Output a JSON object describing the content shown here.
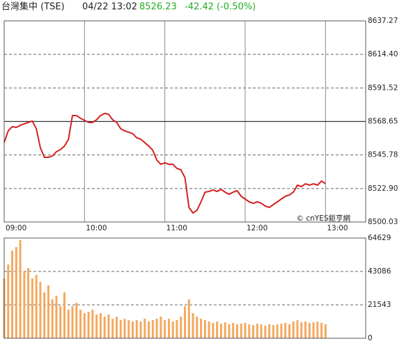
{
  "header": {
    "title": "台灣集中 (TSE)",
    "time": "04/22 13:02",
    "price": "8526.23",
    "change": "-42.42 (-0.50%)"
  },
  "chart_data": [
    {
      "type": "line",
      "color": "#d42020",
      "annotation": "© cnYES鉅亨網",
      "x": [
        0,
        3,
        6,
        9,
        12,
        15,
        18,
        21,
        24,
        27,
        30,
        33,
        36,
        39,
        42,
        45,
        48,
        51,
        54,
        57,
        60,
        63,
        66,
        69,
        72,
        75,
        78,
        81,
        84,
        87,
        90,
        93,
        96,
        99,
        102,
        105,
        108,
        111,
        114,
        117,
        120,
        123,
        126,
        129,
        132,
        135,
        138,
        141,
        144,
        147,
        150,
        153,
        156,
        159,
        162,
        165,
        168,
        171,
        174,
        177,
        180,
        183,
        186,
        189,
        192,
        195,
        198,
        201,
        204,
        207,
        210,
        213,
        216,
        219,
        222,
        225,
        228,
        231,
        234,
        237,
        240
      ],
      "values": [
        8554.2,
        8562.2,
        8565.1,
        8564.6,
        8566.0,
        8567.0,
        8568.0,
        8568.9,
        8563.7,
        8550.8,
        8544.2,
        8544.2,
        8545.1,
        8548.0,
        8549.4,
        8551.8,
        8556.5,
        8572.7,
        8572.7,
        8570.8,
        8569.4,
        8568.0,
        8568.0,
        8569.8,
        8572.7,
        8574.1,
        8573.6,
        8569.8,
        8568.0,
        8563.7,
        8562.2,
        8561.3,
        8560.3,
        8557.5,
        8556.5,
        8554.2,
        8551.8,
        8549.0,
        8542.3,
        8539.4,
        8540.4,
        8539.4,
        8539.4,
        8536.6,
        8535.6,
        8530.4,
        8510.0,
        8506.2,
        8508.1,
        8513.8,
        8520.4,
        8520.9,
        8521.9,
        8520.9,
        8522.3,
        8520.4,
        8519.0,
        8520.4,
        8521.4,
        8517.6,
        8515.7,
        8513.8,
        8512.8,
        8513.8,
        8512.8,
        8510.9,
        8510.0,
        8511.9,
        8513.8,
        8515.7,
        8517.6,
        8518.5,
        8520.4,
        8525.2,
        8524.2,
        8526.1,
        8525.2,
        8526.1,
        8525.2,
        8528.0,
        8526.1
      ],
      "xlim": [
        0,
        270
      ],
      "xticks": [
        {
          "value": 0,
          "label": "09:00"
        },
        {
          "value": 60,
          "label": "10:00"
        },
        {
          "value": 120,
          "label": "11:00"
        },
        {
          "value": 180,
          "label": "12:00"
        },
        {
          "value": 240,
          "label": "13:00"
        }
      ],
      "ylim": [
        8500.03,
        8637.27
      ],
      "yticks": [
        8500.03,
        {
          "value": 8522.9,
          "label": "8522.90"
        },
        8545.78,
        8568.65,
        8591.52,
        {
          "value": 8614.4,
          "label": "8614.40"
        },
        8637.27
      ],
      "reference_value": 8568.65
    },
    {
      "type": "bar",
      "color": "#f4a860",
      "x": [
        0,
        3,
        6,
        9,
        12,
        15,
        18,
        21,
        24,
        27,
        30,
        33,
        36,
        39,
        42,
        45,
        48,
        51,
        54,
        57,
        60,
        63,
        66,
        69,
        72,
        75,
        78,
        81,
        84,
        87,
        90,
        93,
        96,
        99,
        102,
        105,
        108,
        111,
        114,
        117,
        120,
        123,
        126,
        129,
        132,
        135,
        138,
        141,
        144,
        147,
        150,
        153,
        156,
        159,
        162,
        165,
        168,
        171,
        174,
        177,
        180,
        183,
        186,
        189,
        192,
        195,
        198,
        201,
        204,
        207,
        210,
        213,
        216,
        219,
        222,
        225,
        228,
        231,
        234,
        237,
        240
      ],
      "values": [
        38600,
        47600,
        56500,
        58800,
        63300,
        43100,
        45300,
        38600,
        40800,
        36400,
        29600,
        34100,
        25100,
        27400,
        20600,
        29600,
        18400,
        20600,
        22900,
        18400,
        16200,
        17100,
        18400,
        15300,
        16200,
        13900,
        15300,
        12600,
        13900,
        11700,
        12600,
        11700,
        10800,
        11700,
        10800,
        12600,
        10800,
        11700,
        12600,
        13900,
        11700,
        12600,
        10800,
        11700,
        13900,
        20600,
        25100,
        16200,
        13900,
        12600,
        11700,
        10800,
        9900,
        10800,
        9400,
        10300,
        9000,
        9900,
        9000,
        9400,
        9900,
        9000,
        8500,
        9400,
        9000,
        8100,
        9000,
        8500,
        9000,
        9400,
        9900,
        9000,
        10800,
        11700,
        10300,
        10800,
        9900,
        10300,
        10800,
        9900,
        9000
      ],
      "xlim": [
        0,
        270
      ],
      "ylim": [
        0,
        64629
      ],
      "yticks": [
        0,
        21543,
        43086,
        64629
      ]
    }
  ]
}
